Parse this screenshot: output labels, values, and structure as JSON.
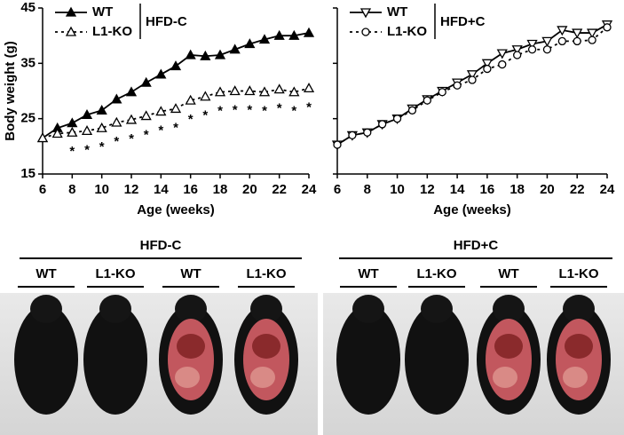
{
  "chart_data": [
    {
      "type": "line",
      "xlabel": "Age (weeks)",
      "ylabel": "Body weight (g)",
      "condition": "HFD-C",
      "xlim": [
        6,
        24
      ],
      "xticks": [
        6,
        8,
        10,
        12,
        14,
        16,
        18,
        20,
        22,
        24
      ],
      "ylim": [
        15,
        45
      ],
      "yticks": [
        15,
        25,
        35,
        45
      ],
      "show_ytick_labels": true,
      "x": [
        6,
        7,
        8,
        9,
        10,
        11,
        12,
        13,
        14,
        15,
        16,
        17,
        18,
        19,
        20,
        21,
        22,
        23,
        24
      ],
      "series": [
        {
          "name": "WT",
          "color": "#000000",
          "marker": "triangle-up",
          "filled": true,
          "dash": false,
          "values": [
            21.5,
            23.3,
            24.2,
            25.7,
            26.5,
            28.5,
            29.8,
            31.5,
            33,
            34.5,
            36.5,
            36.3,
            36.5,
            37.5,
            38.5,
            39.3,
            40,
            40,
            40.5
          ]
        },
        {
          "name": "L1-KO",
          "color": "#000000",
          "marker": "triangle-up",
          "filled": false,
          "dash": true,
          "values": [
            21.5,
            22.3,
            22.5,
            22.8,
            23.3,
            24.3,
            24.8,
            25.5,
            26.3,
            26.8,
            28.3,
            29,
            29.8,
            30,
            30,
            29.8,
            30.3,
            29.8,
            30.5
          ]
        }
      ],
      "annotations": [
        {
          "x": 8,
          "text": "*"
        },
        {
          "x": 9,
          "text": "*"
        },
        {
          "x": 10,
          "text": "*"
        },
        {
          "x": 11,
          "text": "*"
        },
        {
          "x": 12,
          "text": "*"
        },
        {
          "x": 13,
          "text": "*"
        },
        {
          "x": 14,
          "text": "*"
        },
        {
          "x": 15,
          "text": "*"
        },
        {
          "x": 16,
          "text": "*"
        },
        {
          "x": 17,
          "text": "*"
        },
        {
          "x": 18,
          "text": "*"
        },
        {
          "x": 19,
          "text": "*"
        },
        {
          "x": 20,
          "text": "*"
        },
        {
          "x": 21,
          "text": "*"
        },
        {
          "x": 22,
          "text": "*"
        },
        {
          "x": 23,
          "text": "*"
        },
        {
          "x": 24,
          "text": "*"
        }
      ]
    },
    {
      "type": "line",
      "xlabel": "Age (weeks)",
      "condition": "HFD+C",
      "xlim": [
        6,
        24
      ],
      "xticks": [
        6,
        8,
        10,
        12,
        14,
        16,
        18,
        20,
        22,
        24
      ],
      "ylim": [
        15,
        45
      ],
      "yticks": [
        15,
        25,
        35,
        45
      ],
      "show_ytick_labels": false,
      "x": [
        6,
        7,
        8,
        9,
        10,
        11,
        12,
        13,
        14,
        15,
        16,
        17,
        18,
        19,
        20,
        21,
        22,
        23,
        24
      ],
      "series": [
        {
          "name": "WT",
          "color": "#000000",
          "marker": "triangle-down",
          "filled": false,
          "dash": false,
          "values": [
            20.3,
            22,
            22.5,
            24,
            25,
            26.8,
            28.5,
            30,
            31.5,
            33,
            35,
            36.8,
            37.5,
            38.5,
            39,
            41,
            40.5,
            40.5,
            42
          ]
        },
        {
          "name": "L1-KO",
          "color": "#000000",
          "marker": "circle",
          "filled": false,
          "dash": true,
          "values": [
            20.3,
            22,
            22.5,
            24,
            25,
            26.5,
            28.3,
            29.8,
            31,
            32,
            34,
            34.8,
            36.5,
            37.5,
            37.5,
            39,
            39,
            39.2,
            41.5
          ]
        }
      ]
    }
  ],
  "photos": [
    {
      "title": "HFD-C",
      "labels": [
        "WT",
        "L1-KO",
        "WT",
        "L1-KO"
      ]
    },
    {
      "title": "HFD+C",
      "labels": [
        "WT",
        "L1-KO",
        "WT",
        "L1-KO"
      ]
    }
  ]
}
